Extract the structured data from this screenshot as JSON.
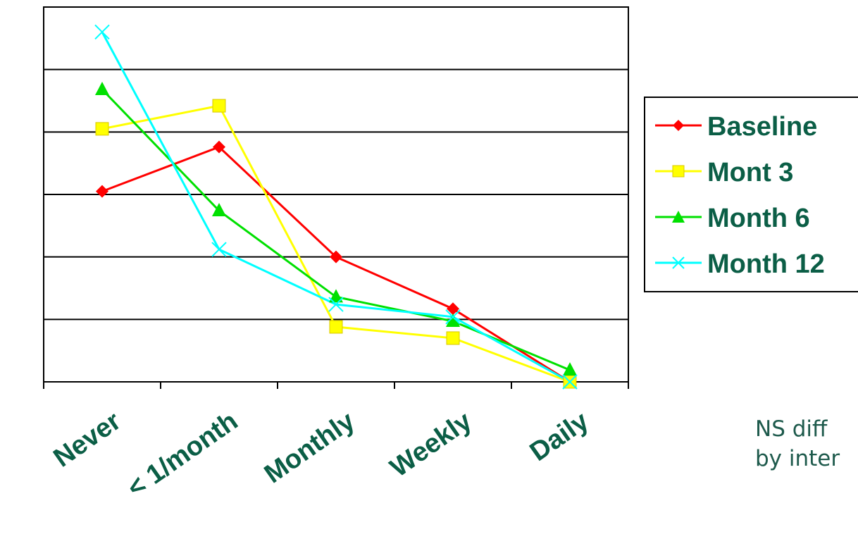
{
  "chart_data": {
    "type": "line",
    "categories": [
      "Never",
      "< 1/month",
      "Monthly",
      "Weekly",
      "Daily"
    ],
    "ylim": [
      0,
      6
    ],
    "grid": true,
    "legend_position": "right",
    "series": [
      {
        "name": "Baseline",
        "color": "#ff0000",
        "marker": "diamond",
        "values": [
          3.05,
          3.76,
          2.0,
          1.17,
          0.0
        ]
      },
      {
        "name": "Mont 3",
        "color": "#ffff00",
        "marker": "square",
        "values": [
          4.05,
          4.42,
          0.88,
          0.7,
          0.0
        ]
      },
      {
        "name": "Month 6",
        "color": "#00e000",
        "marker": "triangle",
        "values": [
          4.68,
          2.74,
          1.36,
          0.97,
          0.19
        ]
      },
      {
        "name": "Month 12",
        "color": "#00ffff",
        "marker": "x",
        "values": [
          5.6,
          2.12,
          1.24,
          1.04,
          0.0
        ]
      }
    ]
  },
  "note": {
    "line1": "NS diff",
    "line2": "by inter"
  },
  "colors": {
    "axis_label": "#0b5e46",
    "note_text": "#1e5a4c"
  }
}
